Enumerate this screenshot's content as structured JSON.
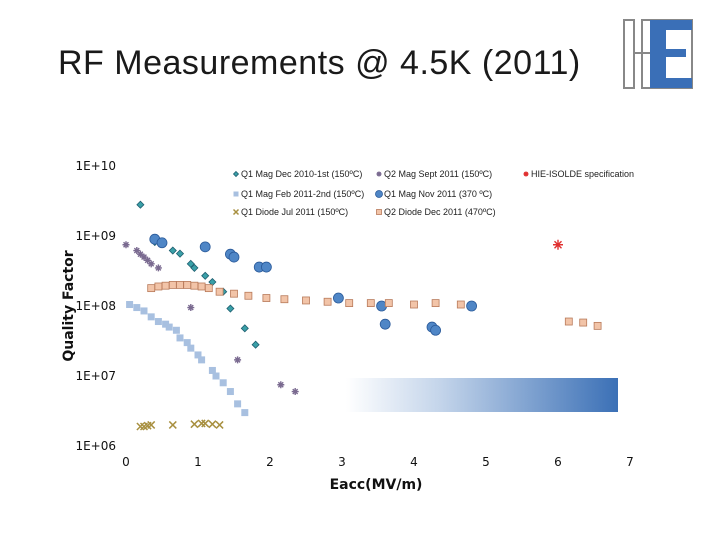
{
  "slide": {
    "title": "RF Measurements @ 4.5K (2011)"
  },
  "chart_data": {
    "type": "scatter",
    "title": "",
    "xlabel": "Eacc(MV/m)",
    "ylabel": "Quality Factor",
    "xlim": [
      0,
      7
    ],
    "ylim": [
      1000000,
      10000000000
    ],
    "y_scale": "log",
    "x_ticks": [
      "0",
      "1",
      "2",
      "3",
      "4",
      "5",
      "6",
      "7"
    ],
    "y_ticks": [
      "1E+06",
      "1E+07",
      "1E+08",
      "1E+09",
      "1E+10"
    ],
    "grid": false,
    "legend_position": "top",
    "series": [
      {
        "name": "Q1 Mag Dec 2010-1st (150ºC)",
        "color": "#3aa0a8",
        "marker": "diamond",
        "x": [
          0.2,
          0.4,
          0.65,
          0.75,
          0.9,
          0.95,
          1.1,
          1.2,
          1.35,
          1.45,
          1.65,
          1.8
        ],
        "y": [
          2800000000,
          820000000,
          620000000,
          560000000,
          400000000,
          350000000,
          270000000,
          220000000,
          160000000,
          92000000,
          48000000,
          28000000
        ]
      },
      {
        "name": "Q2 Mag Sept 2011 (150ºC)",
        "color": "#7a6a90",
        "marker": "star",
        "x": [
          0.0,
          0.15,
          0.2,
          0.25,
          0.3,
          0.35,
          0.45,
          0.9,
          1.55,
          2.15,
          2.35
        ],
        "y": [
          750000000,
          620000000,
          550000000,
          500000000,
          450000000,
          400000000,
          350000000,
          95000000,
          17000000,
          7500000,
          6000000
        ]
      },
      {
        "name": "HIE-ISOLDE specification",
        "color": "#e03030",
        "marker": "star",
        "x": [
          6.0
        ],
        "y": [
          750000000
        ]
      },
      {
        "name": "Q1 Mag Feb 2011-2nd (150ºC)",
        "color": "#a8c0e0",
        "marker": "square",
        "x": [
          0.05,
          0.15,
          0.25,
          0.35,
          0.45,
          0.55,
          0.6,
          0.7,
          0.75,
          0.85,
          0.9,
          1.0,
          1.05,
          1.2,
          1.25,
          1.35,
          1.45,
          1.55,
          1.65
        ],
        "y": [
          105000000,
          95000000,
          85000000,
          70000000,
          60000000,
          55000000,
          50000000,
          45000000,
          35000000,
          30000000,
          25000000,
          20000000,
          17000000,
          12000000,
          10000000,
          8000000,
          6000000,
          4000000,
          3000000
        ]
      },
      {
        "name": "Q1 Mag Nov 2011 (370 ºC)",
        "color": "#4f86c6",
        "marker": "circle",
        "x": [
          0.4,
          0.5,
          1.1,
          1.45,
          1.5,
          1.85,
          1.95,
          2.95,
          3.55,
          3.6,
          4.25,
          4.3,
          4.8
        ],
        "y": [
          900000000,
          800000000,
          700000000,
          550000000,
          500000000,
          360000000,
          360000000,
          130000000,
          100000000,
          55000000,
          50000000,
          45000000,
          100000000
        ]
      },
      {
        "name": "Q1 Diode Jul 2011 (150ºC)",
        "color": "#a89040",
        "marker": "x",
        "x": [
          0.2,
          0.25,
          0.3,
          0.35,
          0.65,
          0.95,
          1.05,
          1.1,
          1.2,
          1.3
        ],
        "y": [
          1900000,
          1900000,
          1950000,
          2000000,
          2000000,
          2050000,
          2100000,
          2100000,
          2050000,
          2000000
        ]
      },
      {
        "name": "Q2 Diode Dec 2011 (470ºC)",
        "color": "#f2c4a8",
        "marker": "square",
        "x": [
          0.35,
          0.45,
          0.55,
          0.65,
          0.75,
          0.85,
          0.95,
          1.05,
          1.15,
          1.3,
          1.5,
          1.7,
          1.95,
          2.2,
          2.5,
          2.8,
          3.1,
          3.4,
          3.65,
          4.0,
          4.3,
          4.65,
          6.15,
          6.35,
          6.55
        ],
        "y": [
          180000000,
          190000000,
          195000000,
          200000000,
          200000000,
          200000000,
          195000000,
          190000000,
          180000000,
          160000000,
          150000000,
          140000000,
          130000000,
          125000000,
          120000000,
          115000000,
          110000000,
          110000000,
          110000000,
          105000000,
          110000000,
          105000000,
          60000000,
          58000000,
          52000000
        ]
      }
    ]
  }
}
